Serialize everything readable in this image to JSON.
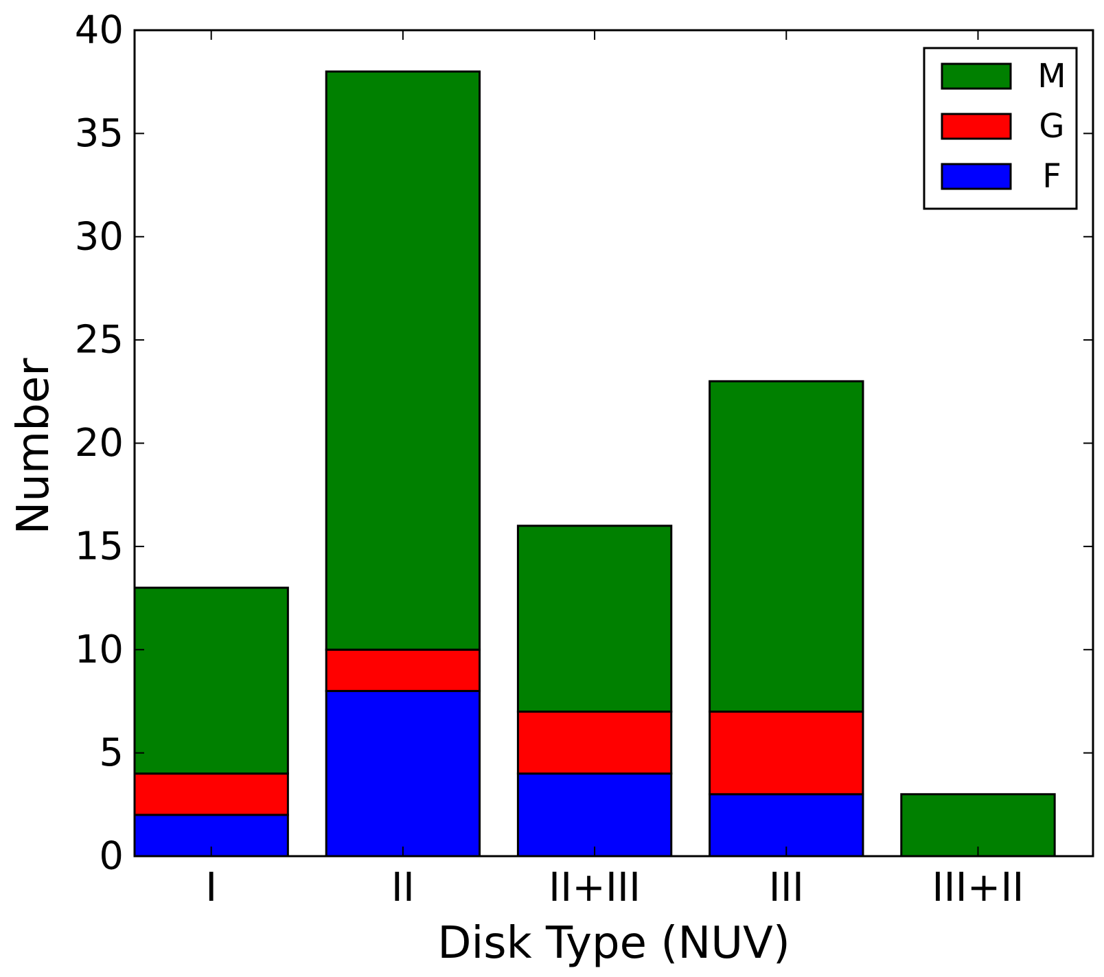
{
  "chart_data": {
    "type": "bar",
    "stacked": true,
    "title": "",
    "xlabel": "Disk Type (NUV)",
    "ylabel": "Number",
    "categories": [
      "I",
      "II",
      "II+III",
      "III",
      "III+II"
    ],
    "ylim": [
      0,
      40
    ],
    "yticks": [
      "0",
      "5",
      "10",
      "15",
      "20",
      "25",
      "30",
      "35",
      "40"
    ],
    "grid": false,
    "legend_position": "top-right",
    "series": [
      {
        "name": "F",
        "color": "#0000ff",
        "values": [
          2,
          8,
          4,
          3,
          0
        ]
      },
      {
        "name": "G",
        "color": "#ff0000",
        "values": [
          2,
          2,
          3,
          4,
          0
        ]
      },
      {
        "name": "M",
        "color": "#008000",
        "values": [
          9,
          28,
          9,
          16,
          3
        ]
      }
    ]
  }
}
